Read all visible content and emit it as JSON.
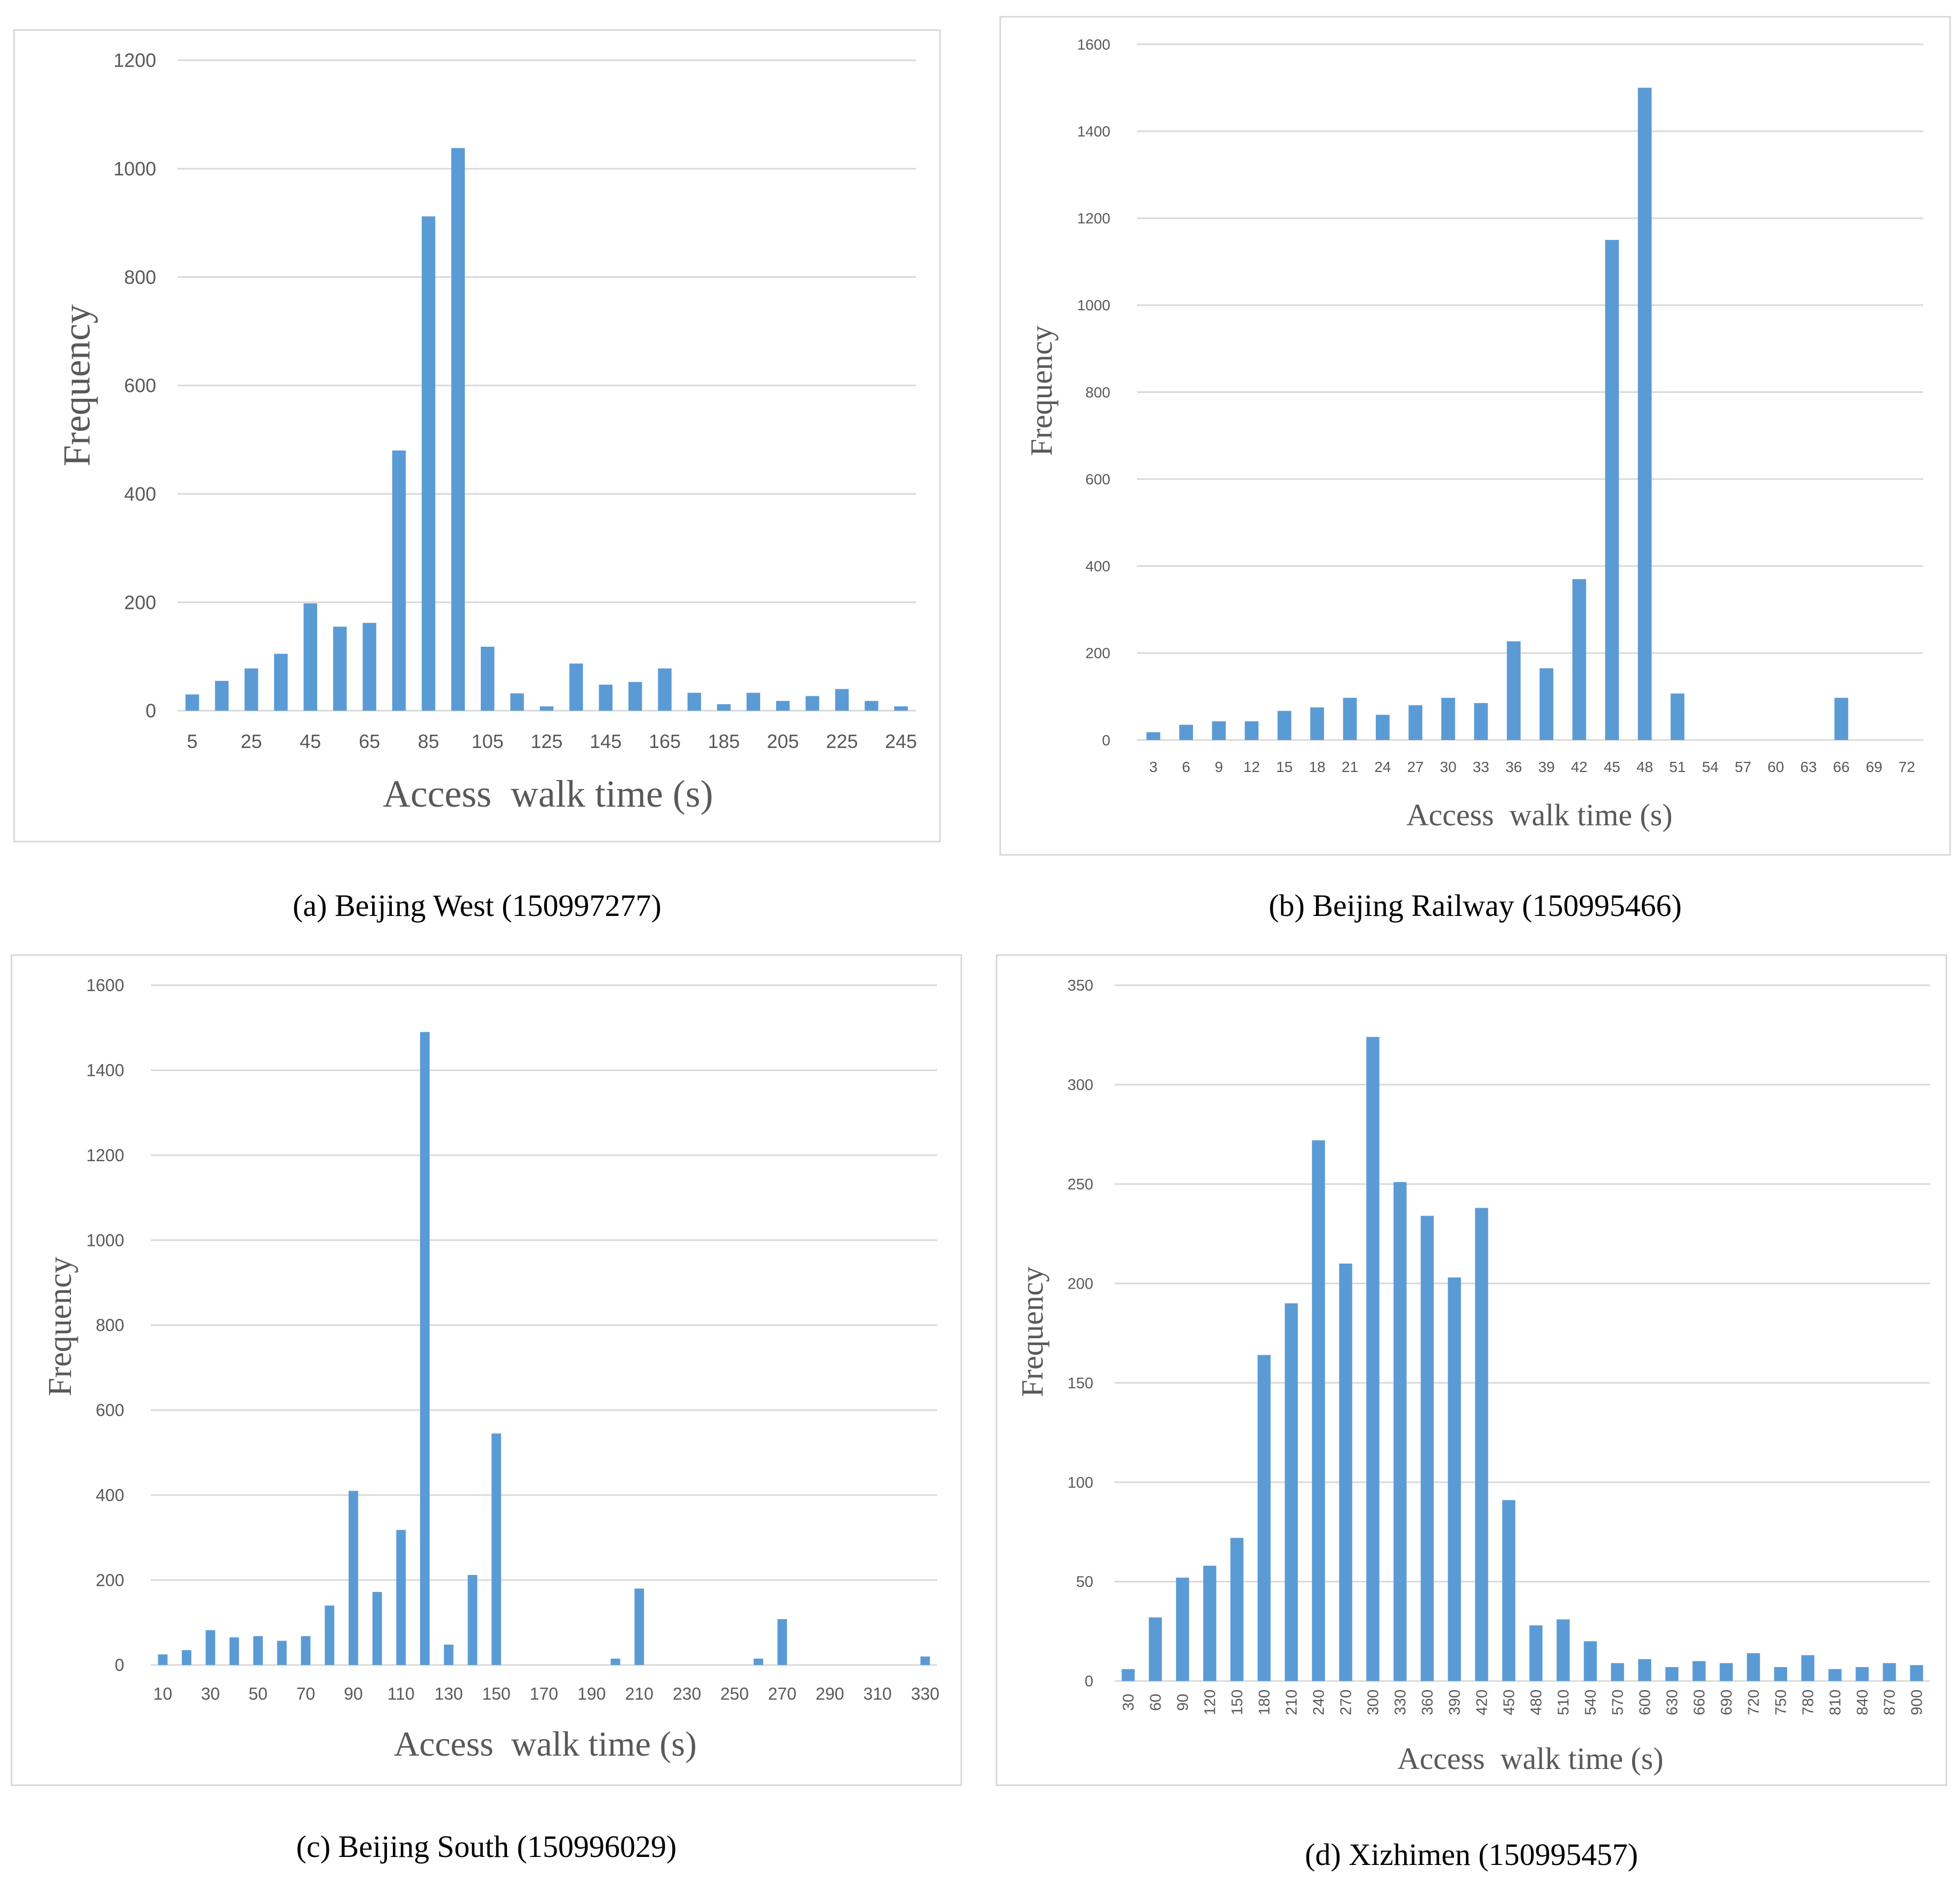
{
  "chart_data": [
    {
      "type": "bar",
      "caption": "(a) Beijing West (150997277)",
      "xlabel": "Access  walk time (s)",
      "ylabel": "Frequency",
      "ylim": [
        0,
        1200
      ],
      "yticks": [
        0,
        200,
        400,
        600,
        800,
        1000,
        1200
      ],
      "categories": [
        5,
        15,
        25,
        35,
        45,
        55,
        65,
        75,
        85,
        95,
        105,
        115,
        125,
        135,
        145,
        155,
        165,
        175,
        185,
        195,
        205,
        215,
        225,
        235,
        245
      ],
      "tick_labels": [
        "5",
        "",
        "25",
        "",
        "45",
        "",
        "65",
        "",
        "85",
        "",
        "105",
        "",
        "125",
        "",
        "145",
        "",
        "165",
        "",
        "185",
        "",
        "205",
        "",
        "225",
        "",
        "245"
      ],
      "values": [
        30,
        55,
        78,
        105,
        198,
        155,
        162,
        480,
        912,
        1038,
        118,
        32,
        8,
        87,
        48,
        53,
        78,
        33,
        12,
        33,
        18,
        27,
        40,
        18,
        8
      ]
    },
    {
      "type": "bar",
      "caption": "(b) Beijing Railway (150995466)",
      "xlabel": "Access  walk time (s)",
      "ylabel": "Frequency",
      "ylim": [
        0,
        1600
      ],
      "yticks": [
        0,
        200,
        400,
        600,
        800,
        1000,
        1200,
        1400,
        1600
      ],
      "categories": [
        3,
        6,
        9,
        12,
        15,
        18,
        21,
        24,
        27,
        30,
        33,
        36,
        39,
        42,
        45,
        48,
        51,
        54,
        57,
        60,
        63,
        66,
        69,
        72
      ],
      "tick_labels": [
        "3",
        "6",
        "9",
        "12",
        "15",
        "18",
        "21",
        "24",
        "27",
        "30",
        "33",
        "36",
        "39",
        "42",
        "45",
        "48",
        "51",
        "54",
        "57",
        "60",
        "63",
        "66",
        "69",
        "72"
      ],
      "values": [
        18,
        35,
        43,
        43,
        67,
        75,
        97,
        58,
        80,
        97,
        85,
        227,
        165,
        370,
        1150,
        1500,
        107,
        0,
        0,
        0,
        0,
        97,
        0,
        0
      ]
    },
    {
      "type": "bar",
      "caption": "(c)  Beijing South (150996029)",
      "xlabel": "Access  walk time (s)",
      "ylabel": "Frequency",
      "ylim": [
        0,
        1600
      ],
      "yticks": [
        0,
        200,
        400,
        600,
        800,
        1000,
        1200,
        1400,
        1600
      ],
      "categories": [
        10,
        20,
        30,
        40,
        50,
        60,
        70,
        80,
        90,
        100,
        110,
        120,
        130,
        140,
        150,
        160,
        170,
        180,
        190,
        200,
        210,
        220,
        230,
        240,
        250,
        260,
        270,
        280,
        290,
        300,
        310,
        320,
        330
      ],
      "tick_labels": [
        "10",
        "",
        "30",
        "",
        "50",
        "",
        "70",
        "",
        "90",
        "",
        "110",
        "",
        "130",
        "",
        "150",
        "",
        "170",
        "",
        "190",
        "",
        "210",
        "",
        "230",
        "",
        "250",
        "",
        "270",
        "",
        "290",
        "",
        "310",
        "",
        "330"
      ],
      "values": [
        25,
        35,
        82,
        65,
        68,
        57,
        68,
        140,
        410,
        172,
        318,
        1490,
        48,
        212,
        545,
        0,
        0,
        0,
        0,
        15,
        180,
        0,
        0,
        0,
        0,
        15,
        108,
        0,
        0,
        0,
        0,
        0,
        20
      ]
    },
    {
      "type": "bar",
      "caption": "(d) Xizhimen (150995457)",
      "xlabel": "Access  walk time (s)",
      "ylabel": "Frequency",
      "ylim": [
        0,
        350
      ],
      "yticks": [
        0,
        50,
        100,
        150,
        200,
        250,
        300,
        350
      ],
      "categories": [
        30,
        60,
        90,
        120,
        150,
        180,
        210,
        240,
        270,
        300,
        330,
        360,
        390,
        420,
        450,
        480,
        510,
        540,
        570,
        600,
        630,
        660,
        690,
        720,
        750,
        780,
        810,
        840,
        870,
        900
      ],
      "tick_labels": [
        "30",
        "60",
        "90",
        "120",
        "150",
        "180",
        "210",
        "240",
        "270",
        "300",
        "330",
        "360",
        "390",
        "420",
        "450",
        "480",
        "510",
        "540",
        "570",
        "600",
        "630",
        "660",
        "690",
        "720",
        "750",
        "780",
        "810",
        "840",
        "870",
        "900"
      ],
      "values": [
        6,
        32,
        52,
        58,
        72,
        164,
        190,
        272,
        210,
        324,
        251,
        234,
        203,
        238,
        91,
        28,
        31,
        20,
        9,
        11,
        7,
        10,
        9,
        14,
        7,
        13,
        6,
        7,
        9,
        8
      ]
    }
  ]
}
